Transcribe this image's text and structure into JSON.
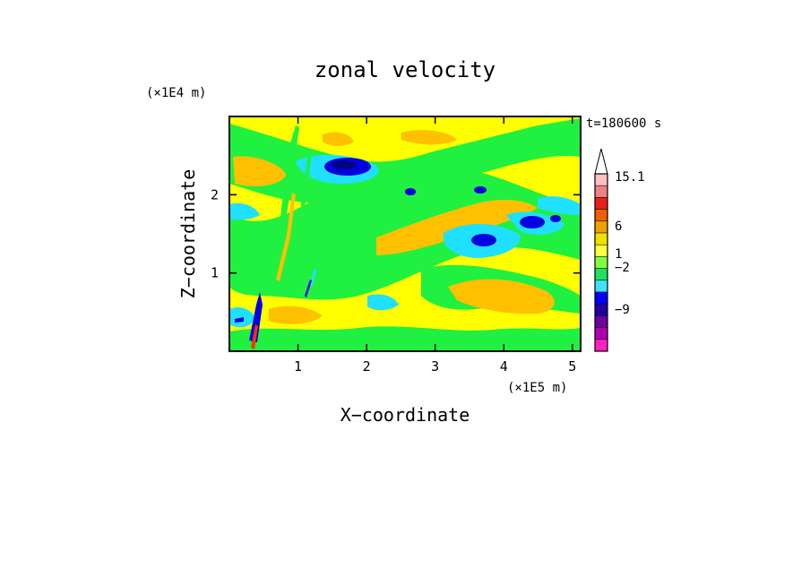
{
  "chart_data": {
    "type": "heatmap",
    "title": "zonal velocity",
    "time_label": "t=180600 s",
    "xlabel": "X−coordinate",
    "ylabel": "Z−coordinate",
    "x_scale_label": "(×1E5 m)",
    "y_scale_label": "(×1E4 m)",
    "xlim": [
      0,
      5.12
    ],
    "ylim": [
      0,
      3.0
    ],
    "x_ticks": [
      {
        "value": 1,
        "label": "1"
      },
      {
        "value": 2,
        "label": "2"
      },
      {
        "value": 3,
        "label": "3"
      },
      {
        "value": 4,
        "label": "4"
      },
      {
        "value": 5,
        "label": "5"
      }
    ],
    "y_ticks": [
      {
        "value": 1,
        "label": "1"
      },
      {
        "value": 2,
        "label": "2"
      }
    ],
    "colorbar": {
      "colors_top_to_bottom": [
        "#ffffff",
        "#ffc0c0",
        "#f08080",
        "#e8201c",
        "#f06000",
        "#f0a000",
        "#f0e000",
        "#ffff40",
        "#80ff40",
        "#20e060",
        "#40e0ff",
        "#0000ff",
        "#2000a0",
        "#7000a0",
        "#b000b0",
        "#ff20c0"
      ],
      "labels": [
        {
          "value": 15.1,
          "text": "15.1"
        },
        {
          "value": 6,
          "text": "6"
        },
        {
          "value": 1,
          "text": "1"
        },
        {
          "value": -2,
          "text": "−2"
        },
        {
          "value": -9,
          "text": "−9"
        }
      ]
    },
    "palette": {
      "yellow": "#ffff00",
      "orange": "#ffc000",
      "green": "#20f040",
      "cyan": "#20e0ff",
      "blue": "#0000e0",
      "darkblue": "#000080",
      "red": "#ff3000"
    }
  }
}
